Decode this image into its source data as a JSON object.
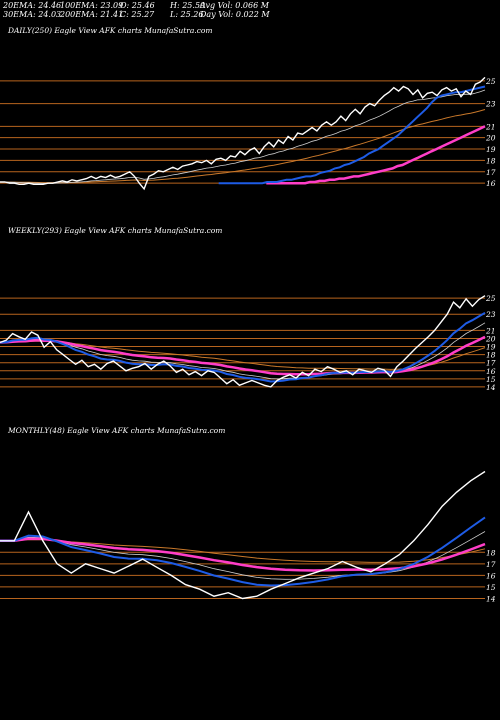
{
  "header": {
    "ema20": "20EMA: 24.46",
    "ema100": "100EMA: 23.09",
    "open": "O: 25.46",
    "avg_vol": "Avg Vol: 0.066  M",
    "ema30": "30EMA: 24.03",
    "ema200": "200EMA: 21.41",
    "close": "C: 25.27",
    "day_vol": "Day Vol: 0.022  M",
    "high": "H: 25.50",
    "low": "L: 25.26"
  },
  "panels": {
    "daily": {
      "title": "DAILY(250) Eagle  View  AFK charts MunafaSutra.com"
    },
    "weekly": {
      "title": "WEEKLY(293) Eagle  View  AFK charts MunafaSutra.com"
    },
    "monthly": {
      "title": "MONTHLY(48) Eagle  View  AFK charts MunafaSutra.com"
    }
  },
  "colors": {
    "price": "#ffffff",
    "ema_blue": "#1e5ce6",
    "ema_pink": "#ff3ec8",
    "ema_orange": "#c8782a",
    "ema_grey": "#cfcfcf",
    "level_line": "#b8641e"
  },
  "chart_data": [
    {
      "type": "line",
      "panel": "daily",
      "ylim": [
        15.4,
        25.6
      ],
      "y_ticks": [
        25,
        23,
        21,
        20,
        19,
        18,
        17,
        16
      ],
      "price": [
        16.1,
        16.1,
        16.0,
        16.0,
        15.9,
        15.9,
        16.0,
        15.9,
        15.9,
        15.9,
        16.0,
        16.0,
        16.1,
        16.2,
        16.1,
        16.3,
        16.2,
        16.3,
        16.4,
        16.6,
        16.4,
        16.6,
        16.5,
        16.7,
        16.5,
        16.6,
        16.8,
        17.0,
        16.6,
        16.0,
        15.5,
        16.6,
        16.8,
        17.1,
        17.0,
        17.2,
        17.4,
        17.2,
        17.5,
        17.6,
        17.7,
        17.9,
        17.8,
        18.0,
        17.7,
        18.1,
        18.2,
        18.0,
        18.4,
        18.3,
        18.8,
        18.5,
        18.9,
        19.1,
        18.6,
        19.2,
        19.6,
        19.2,
        19.8,
        19.5,
        20.1,
        19.8,
        20.4,
        20.3,
        20.6,
        20.9,
        20.6,
        21.1,
        21.4,
        21.1,
        21.4,
        21.9,
        21.5,
        22.1,
        22.5,
        22.1,
        22.7,
        23.0,
        22.8,
        23.3,
        23.7,
        24.0,
        24.4,
        24.1,
        24.5,
        24.3,
        23.8,
        24.2,
        23.5,
        23.9,
        24.0,
        23.7,
        24.2,
        24.4,
        24.1,
        24.3,
        23.6,
        24.1,
        23.8,
        24.7,
        24.9,
        25.3
      ],
      "ema_fast": [
        16.0,
        16.0,
        16.0,
        16.0,
        16.0,
        16.0,
        16.0,
        16.0,
        16.0,
        16.0,
        16.1,
        16.1,
        16.1,
        16.2,
        16.3,
        16.3,
        16.4,
        16.5,
        16.6,
        16.6,
        16.7,
        16.9,
        17.0,
        17.1,
        17.3,
        17.4,
        17.6,
        17.7,
        17.9,
        18.1,
        18.3,
        18.6,
        18.8,
        19.0,
        19.3,
        19.6,
        19.9,
        20.2,
        20.6,
        21.0,
        21.4,
        21.8,
        22.2,
        22.6,
        23.1,
        23.5,
        23.7,
        23.8,
        23.9,
        24.0,
        24.0,
        24.1,
        24.2,
        24.3,
        24.4,
        24.5
      ],
      "ema_slow": [
        16.0,
        16.0,
        16.0,
        16.0,
        16.0,
        16.0,
        16.0,
        16.0,
        16.0,
        16.1,
        16.1,
        16.2,
        16.2,
        16.3,
        16.3,
        16.4,
        16.4,
        16.5,
        16.6,
        16.6,
        16.7,
        16.8,
        16.9,
        17.0,
        17.1,
        17.2,
        17.3,
        17.5,
        17.6,
        17.8,
        18.0,
        18.2,
        18.4,
        18.6,
        18.8,
        19.0,
        19.2,
        19.4,
        19.6,
        19.8,
        20.0,
        20.2,
        20.4,
        20.6,
        20.8,
        21.0
      ]
    },
    {
      "type": "line",
      "panel": "weekly",
      "ylim": [
        13.0,
        26.0
      ],
      "y_ticks": [
        25,
        23,
        21,
        20,
        19,
        18,
        17,
        16,
        15,
        14
      ],
      "price": [
        19.5,
        19.8,
        20.6,
        20.2,
        19.9,
        20.8,
        20.4,
        18.9,
        19.6,
        18.6,
        18.0,
        17.4,
        16.8,
        17.3,
        16.5,
        16.8,
        16.2,
        16.9,
        17.2,
        16.6,
        16.0,
        16.3,
        16.5,
        16.9,
        16.2,
        16.8,
        17.2,
        16.6,
        15.8,
        16.2,
        15.5,
        15.9,
        15.4,
        16.0,
        15.8,
        15.1,
        14.4,
        14.9,
        14.2,
        14.5,
        14.8,
        14.5,
        14.2,
        14.0,
        14.8,
        15.2,
        15.5,
        15.1,
        15.8,
        15.4,
        16.2,
        15.9,
        16.5,
        16.2,
        15.8,
        16.0,
        15.5,
        16.2,
        16.0,
        15.8,
        16.3,
        16.1,
        15.3,
        16.5,
        17.2,
        18.0,
        18.8,
        19.5,
        20.2,
        21.0,
        22.0,
        23.0,
        24.5,
        23.8,
        24.9,
        24.0,
        24.8,
        25.3
      ]
    },
    {
      "type": "line",
      "panel": "monthly",
      "ylim": [
        13.0,
        26.0
      ],
      "y_ticks": [
        18,
        17,
        16,
        15,
        14
      ],
      "price": [
        19.0,
        19.0,
        21.5,
        19.0,
        17.0,
        16.2,
        17.0,
        16.6,
        16.2,
        16.8,
        17.4,
        16.7,
        16.0,
        15.2,
        14.8,
        14.2,
        14.5,
        14.0,
        14.2,
        14.8,
        15.3,
        15.8,
        16.2,
        16.6,
        17.2,
        16.7,
        16.3,
        17.0,
        17.8,
        19.0,
        20.4,
        22.0,
        23.2,
        24.2,
        25.0
      ]
    }
  ]
}
